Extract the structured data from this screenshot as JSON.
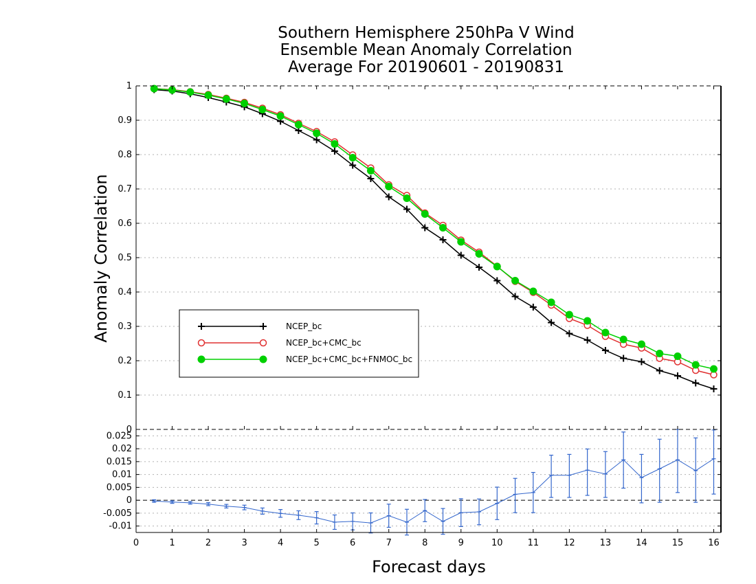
{
  "chart_data": [
    {
      "type": "line",
      "title": [
        "Southern Hemisphere 250hPa V Wind",
        "Ensemble Mean Anomaly Correlation",
        "Average For 20190601 - 20190831"
      ],
      "xlabel": "Forecast days",
      "ylabel": "Anomaly Correlation",
      "xlim": [
        0,
        16.2
      ],
      "ylim": [
        0,
        1
      ],
      "xticks": [
        "0",
        "1",
        "2",
        "3",
        "4",
        "5",
        "6",
        "7",
        "8",
        "9",
        "10",
        "11",
        "12",
        "13",
        "14",
        "15",
        "16"
      ],
      "yticks": [
        "0.1",
        "0.2",
        "0.3",
        "0.4",
        "0.5",
        "0.6",
        "0.7",
        "0.8",
        "0.9",
        "1"
      ],
      "grid": true,
      "legend_position": "lower-left",
      "x": [
        0.5,
        1,
        1.5,
        2,
        2.5,
        3,
        3.5,
        4,
        4.5,
        5,
        5.5,
        6,
        6.5,
        7,
        7.5,
        8,
        8.5,
        9,
        9.5,
        10,
        10.5,
        11,
        11.5,
        12,
        12.5,
        13,
        13.5,
        14,
        14.5,
        15,
        15.5,
        16
      ],
      "series": [
        {
          "name": "NCEP_bc",
          "color": "#000000",
          "marker": "plus",
          "values": [
            0.989,
            0.985,
            0.977,
            0.966,
            0.953,
            0.939,
            0.919,
            0.897,
            0.87,
            0.843,
            0.81,
            0.769,
            0.73,
            0.677,
            0.641,
            0.587,
            0.552,
            0.507,
            0.472,
            0.433,
            0.387,
            0.356,
            0.311,
            0.279,
            0.26,
            0.23,
            0.207,
            0.197,
            0.171,
            0.156,
            0.135,
            0.118
          ]
        },
        {
          "name": "NCEP_bc+CMC_bc",
          "color": "#e03030",
          "marker": "open-circle",
          "values": [
            0.992,
            0.989,
            0.983,
            0.975,
            0.964,
            0.952,
            0.935,
            0.916,
            0.891,
            0.867,
            0.837,
            0.799,
            0.761,
            0.712,
            0.681,
            0.63,
            0.594,
            0.551,
            0.516,
            0.475,
            0.431,
            0.399,
            0.362,
            0.323,
            0.303,
            0.271,
            0.248,
            0.237,
            0.207,
            0.197,
            0.172,
            0.159
          ]
        },
        {
          "name": "NCEP_bc+CMC_bc+FNMOC_bc",
          "color": "#00d000",
          "marker": "filled-circle",
          "values": [
            0.992,
            0.988,
            0.982,
            0.973,
            0.962,
            0.949,
            0.931,
            0.912,
            0.887,
            0.862,
            0.831,
            0.791,
            0.753,
            0.707,
            0.673,
            0.627,
            0.587,
            0.546,
            0.511,
            0.474,
            0.433,
            0.402,
            0.37,
            0.334,
            0.316,
            0.282,
            0.262,
            0.248,
            0.221,
            0.213,
            0.188,
            0.176
          ]
        }
      ]
    },
    {
      "type": "line",
      "title": "",
      "xlabel": "Forecast days",
      "ylabel": "",
      "xlim": [
        0,
        16.2
      ],
      "ylim": [
        -0.0125,
        0.0275
      ],
      "yticks": [
        "-0.01",
        "-0.005",
        "0",
        "0.005",
        "0.01",
        "0.015",
        "0.02",
        "0.025"
      ],
      "grid": true,
      "x": [
        0.5,
        1,
        1.5,
        2,
        2.5,
        3,
        3.5,
        4,
        4.5,
        5,
        5.5,
        6,
        6.5,
        7,
        7.5,
        8,
        8.5,
        9,
        9.5,
        10,
        10.5,
        11,
        11.5,
        12,
        12.5,
        13,
        13.5,
        14,
        14.5,
        15,
        15.5,
        16
      ],
      "series": [
        {
          "name": "",
          "color": "#3366cc",
          "marker": "error-bar",
          "values": [
            -0.0003,
            -0.0007,
            -0.001,
            -0.0015,
            -0.0023,
            -0.0028,
            -0.0042,
            -0.0051,
            -0.0058,
            -0.0068,
            -0.0085,
            -0.0082,
            -0.0088,
            -0.006,
            -0.0085,
            -0.004,
            -0.0082,
            -0.0048,
            -0.0045,
            -0.0012,
            0.0023,
            0.003,
            0.0097,
            0.0097,
            0.0117,
            0.0102,
            0.0157,
            0.0088,
            0.0122,
            0.0157,
            0.0115,
            0.0161
          ],
          "error_low": [
            -0.0008,
            -0.0012,
            -0.0015,
            -0.0021,
            -0.003,
            -0.0037,
            -0.0054,
            -0.0066,
            -0.0075,
            -0.0092,
            -0.0113,
            -0.0115,
            -0.0127,
            -0.0105,
            -0.0135,
            -0.0083,
            -0.0132,
            -0.0102,
            -0.0095,
            -0.0075,
            -0.0048,
            -0.0048,
            0.0011,
            0.0011,
            0.0019,
            0.0011,
            0.0047,
            -0.001,
            -0.0008,
            0.003,
            -0.0008,
            0.0024
          ],
          "error_high": [
            0.0002,
            -0.0002,
            -0.0005,
            -0.0009,
            -0.0016,
            -0.0019,
            -0.003,
            -0.0036,
            -0.0041,
            -0.0044,
            -0.0057,
            -0.0049,
            -0.0049,
            -0.0015,
            -0.0035,
            0.0003,
            -0.0032,
            0.0006,
            0.0005,
            0.0051,
            0.0085,
            0.0108,
            0.0175,
            0.0178,
            0.0199,
            0.0189,
            0.0265,
            0.0178,
            0.0237,
            0.0285,
            0.0242,
            0.0273
          ]
        }
      ]
    }
  ]
}
